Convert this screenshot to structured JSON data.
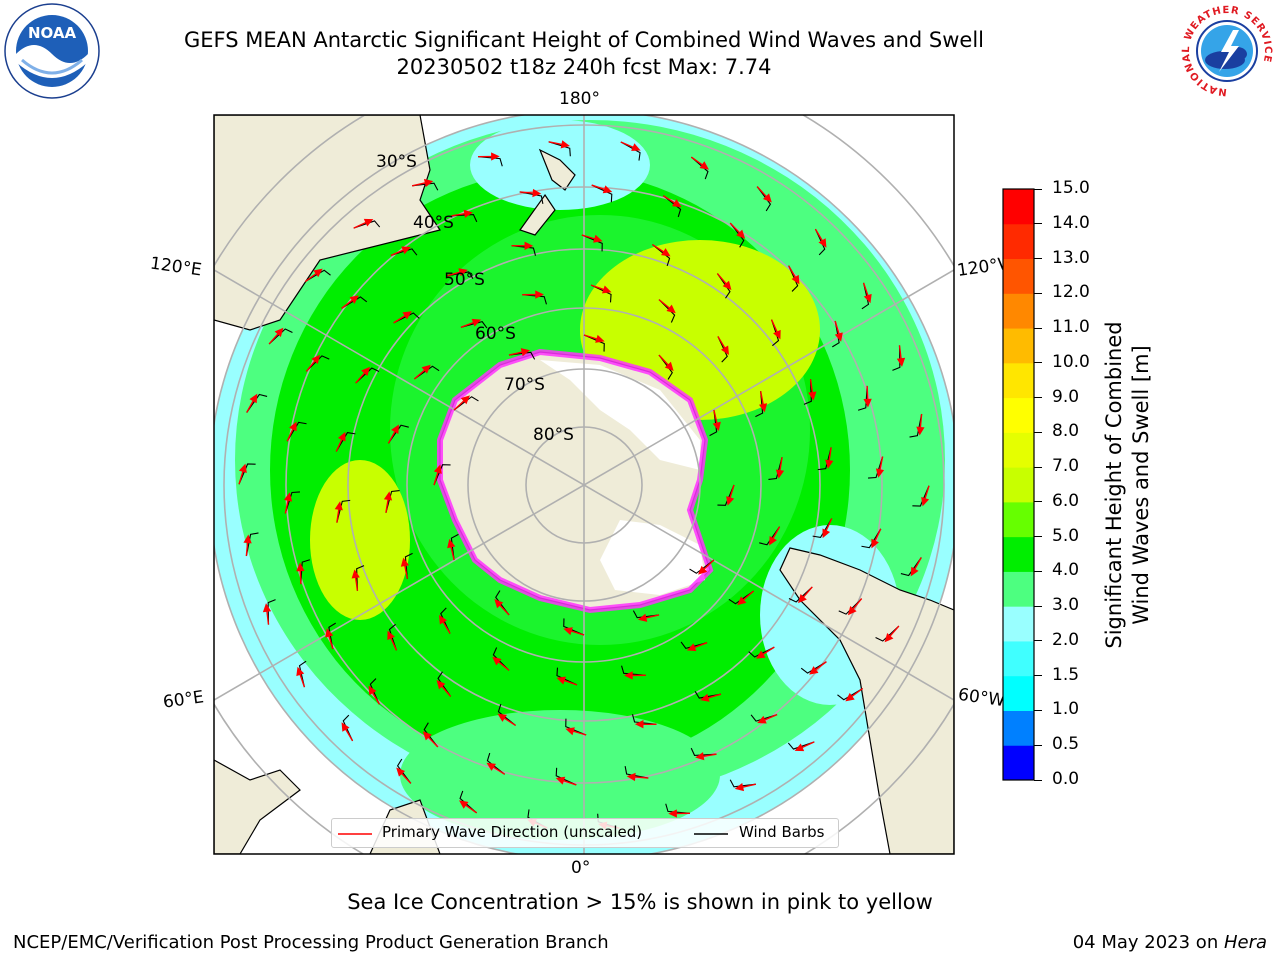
{
  "title": {
    "line1": "GEFS MEAN Antarctic Significant Height of Combined Wind Waves and Swell",
    "line2": "20230502 t18z 240h fcst   Max: 7.74"
  },
  "map": {
    "projection": "south-polar-stereographic",
    "lon_labels": {
      "top": "180°",
      "bottom": "0°",
      "upper_left": "120°E",
      "lower_left": "60°E",
      "upper_right": "120°W",
      "lower_right": "60°W"
    },
    "lat_labels": [
      "30°S",
      "40°S",
      "50°S",
      "60°S",
      "70°S",
      "80°S"
    ],
    "colors": {
      "land": "#efecd8",
      "ice": "#ffffff",
      "ice_edge": "#ff33ff",
      "arrow": "#ff0000",
      "barb": "#000000"
    }
  },
  "colorbar": {
    "label_line1": "Significant Height of Combined",
    "label_line2": "Wind Waves and Swell [m]",
    "ticks": [
      "0.0",
      "0.5",
      "1.0",
      "1.5",
      "2.0",
      "3.0",
      "4.0",
      "5.0",
      "6.0",
      "7.0",
      "8.0",
      "9.0",
      "10.0",
      "11.0",
      "12.0",
      "13.0",
      "14.0",
      "15.0"
    ],
    "colors": [
      "#0000ff",
      "#0080ff",
      "#00ffff",
      "#40ffff",
      "#99ffff",
      "#4dff80",
      "#00ee00",
      "#66ff00",
      "#c8ff00",
      "#e5ff00",
      "#ffff00",
      "#ffe600",
      "#ffbb00",
      "#ff8800",
      "#ff5500",
      "#ff2a00",
      "#ff0000"
    ]
  },
  "legend": {
    "wave_label": "Primary Wave Direction (unscaled)",
    "barb_label": "Wind Barbs"
  },
  "caption": "Sea Ice Concentration > 15% is shown in pink to yellow",
  "footer": {
    "left": "NCEP/EMC/Verification Post Processing Product Generation Branch",
    "right_date": "04 May 2023 on ",
    "right_host": "Hera"
  },
  "logos": {
    "noaa": "NOAA",
    "nws": "NATIONAL WEATHER SERVICE"
  }
}
